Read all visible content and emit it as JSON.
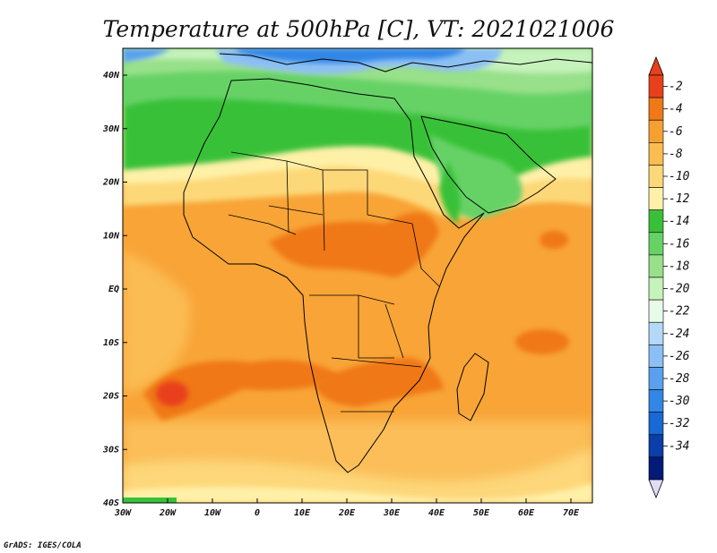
{
  "title": "Temperature at 500hPa [C], VT: 2021021006",
  "credit": "GrADS: IGES/COLA",
  "map": {
    "lat_range": [
      -40,
      45
    ],
    "lon_range": [
      -30,
      75
    ],
    "lat_ticks": [
      "40N",
      "30N",
      "20N",
      "10N",
      "EQ",
      "10S",
      "20S",
      "30S",
      "40S"
    ],
    "lon_ticks": [
      "30W",
      "20W",
      "10W",
      "0",
      "10E",
      "20E",
      "30E",
      "40E",
      "50E",
      "60E",
      "70E"
    ],
    "variable": "Temperature at 500hPa",
    "units": "C"
  },
  "colorbar": {
    "levels": [
      "-2",
      "-4",
      "-6",
      "-8",
      "-10",
      "-12",
      "-14",
      "-16",
      "-18",
      "-20",
      "-22",
      "-24",
      "-26",
      "-28",
      "-30",
      "-32",
      "-34"
    ],
    "colors_top_to_bottom": [
      "#e8401c",
      "#f07818",
      "#f7a032",
      "#fbbc52",
      "#fdd878",
      "#fff0a8",
      "#38c138",
      "#66d266",
      "#98e08a",
      "#c6f2bc",
      "#e8fbe8",
      "#b4d8f8",
      "#8cc0f4",
      "#5aa0ee",
      "#3286e6",
      "#1868d6",
      "#0a3ea8",
      "#041a78"
    ],
    "over_color": "#e8401c",
    "under_color": "#e0dcf8"
  }
}
